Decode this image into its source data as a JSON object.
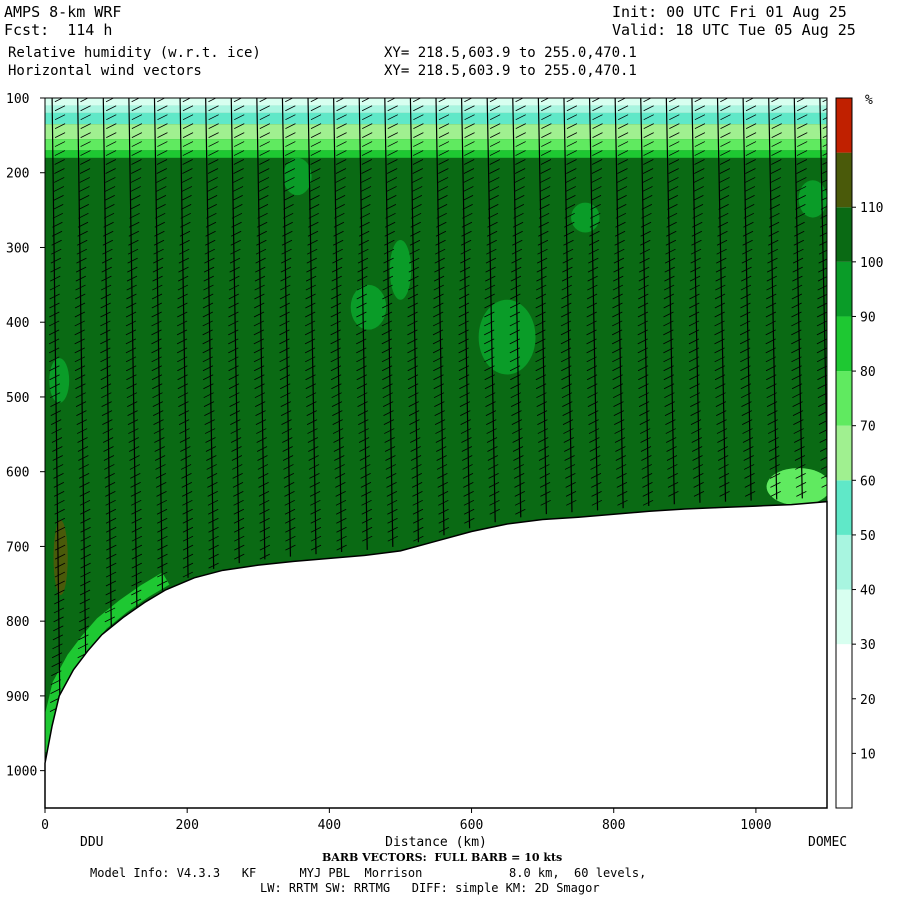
{
  "header": {
    "model": "AMPS 8-km WRF",
    "fcst": "Fcst:  114 h",
    "init": "Init: 00 UTC Fri 01 Aug 25",
    "valid": "Valid: 18 UTC Tue 05 Aug 25",
    "field1": "Relative humidity (w.r.t. ice)",
    "field2": "Horizontal wind vectors",
    "xy1": "XY= 218.5,603.9 to 255.0,470.1",
    "xy2": "XY= 218.5,603.9 to 255.0,470.1"
  },
  "footer": {
    "barb_note": "BARB VECTORS:  FULL BARB = 10 kts",
    "model_info": "Model Info: V4.3.3   KF      MYJ PBL  Morrison            8.0 km,  60 levels,",
    "physics": "LW: RRTM SW: RRTMG   DIFF: simple KM: 2D Smagor"
  },
  "chart_data": {
    "type": "heatmap",
    "title": "Relative humidity (w.r.t. ice)",
    "xlabel": "Distance (km)",
    "ylabel": "",
    "x_start_label": "DDU",
    "x_end_label": "DOMEC",
    "xlim": [
      0,
      1100
    ],
    "ylim": [
      1050,
      100
    ],
    "x_ticks": [
      0,
      200,
      400,
      600,
      800,
      1000
    ],
    "y_ticks": [
      100,
      200,
      300,
      400,
      500,
      600,
      700,
      800,
      900,
      1000
    ],
    "colorbar": {
      "unit": "%",
      "ticks": [
        10,
        20,
        30,
        40,
        50,
        60,
        70,
        80,
        90,
        100,
        110
      ],
      "levels": [
        0,
        10,
        20,
        30,
        40,
        50,
        60,
        70,
        80,
        90,
        100,
        110,
        120
      ],
      "colors": [
        "#ffffff",
        "#ffffff",
        "#ffffff",
        "#d8fff0",
        "#a8f5e0",
        "#60e8c8",
        "#a0f090",
        "#60ea60",
        "#1ec832",
        "#0a9c28",
        "#0a6a14",
        "#4a5a0a",
        "#c02000"
      ]
    },
    "terrain": [
      [
        0,
        990
      ],
      [
        10,
        940
      ],
      [
        20,
        900
      ],
      [
        40,
        865
      ],
      [
        60,
        840
      ],
      [
        80,
        818
      ],
      [
        110,
        795
      ],
      [
        140,
        775
      ],
      [
        170,
        758
      ],
      [
        210,
        742
      ],
      [
        250,
        732
      ],
      [
        300,
        725
      ],
      [
        350,
        720
      ],
      [
        400,
        716
      ],
      [
        450,
        712
      ],
      [
        500,
        706
      ],
      [
        550,
        693
      ],
      [
        600,
        680
      ],
      [
        650,
        670
      ],
      [
        700,
        664
      ],
      [
        750,
        661
      ],
      [
        800,
        657
      ],
      [
        850,
        653
      ],
      [
        900,
        650
      ],
      [
        950,
        648
      ],
      [
        1000,
        646
      ],
      [
        1050,
        644
      ],
      [
        1100,
        640
      ]
    ],
    "rh_dry_layer_top": [
      100,
      180
    ],
    "rh_background": 105,
    "rh_features": [
      {
        "x": 22,
        "p": 715,
        "rx": 10,
        "ry": 50,
        "value": 115
      },
      {
        "x": 20,
        "p": 478,
        "rx": 14,
        "ry": 30,
        "value": 95
      },
      {
        "x": 355,
        "p": 205,
        "rx": 20,
        "ry": 25,
        "value": 95
      },
      {
        "x": 455,
        "p": 380,
        "rx": 25,
        "ry": 30,
        "value": 95
      },
      {
        "x": 500,
        "p": 330,
        "rx": 15,
        "ry": 40,
        "value": 95
      },
      {
        "x": 650,
        "p": 420,
        "rx": 40,
        "ry": 50,
        "value": 95
      },
      {
        "x": 760,
        "p": 260,
        "rx": 20,
        "ry": 20,
        "value": 95
      },
      {
        "x": 1060,
        "p": 620,
        "rx": 45,
        "ry": 25,
        "value": 75
      },
      {
        "x": 1080,
        "p": 235,
        "rx": 20,
        "ry": 25,
        "value": 95
      }
    ]
  }
}
